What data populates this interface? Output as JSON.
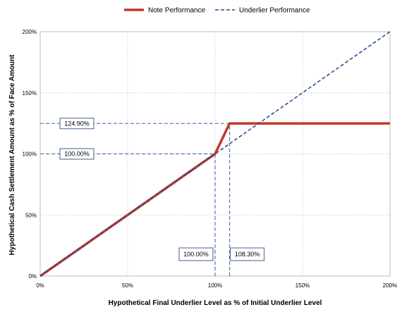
{
  "chart_data": {
    "type": "line",
    "xlabel": "Hypothetical Final Underlier Level as % of Initial Underlier Level",
    "ylabel": "Hypothetical Cash Settlement Amount as % of Face Amount",
    "xlim": [
      0,
      200
    ],
    "ylim": [
      0,
      200
    ],
    "x_ticks": [
      "0%",
      "50%",
      "100%",
      "150%",
      "200%"
    ],
    "y_ticks": [
      "0%",
      "50%",
      "100%",
      "150%",
      "200%"
    ],
    "grid": true,
    "legend_position": "top",
    "series": [
      {
        "name": "Note Performance",
        "style": "solid",
        "color": "#c0392b",
        "points": [
          [
            0,
            0
          ],
          [
            100,
            100
          ],
          [
            108.3,
            124.9
          ],
          [
            200,
            124.9
          ]
        ]
      },
      {
        "name": "Underlier Performance",
        "style": "dashed",
        "color": "#2e4f8f",
        "points": [
          [
            0,
            0
          ],
          [
            200,
            200
          ]
        ]
      }
    ],
    "annotations": [
      {
        "label": "124.90%",
        "value": 124.9,
        "orientation": "horizontal",
        "to_x": 108.3
      },
      {
        "label": "100.00%",
        "value": 100,
        "orientation": "horizontal",
        "to_x": 100
      },
      {
        "label": "100.00%",
        "value": 100,
        "orientation": "vertical",
        "to_y": 100
      },
      {
        "label": "108.30%",
        "value": 108.3,
        "orientation": "vertical",
        "to_y": 124.9
      }
    ],
    "annotation_color": "#4a78c4"
  }
}
